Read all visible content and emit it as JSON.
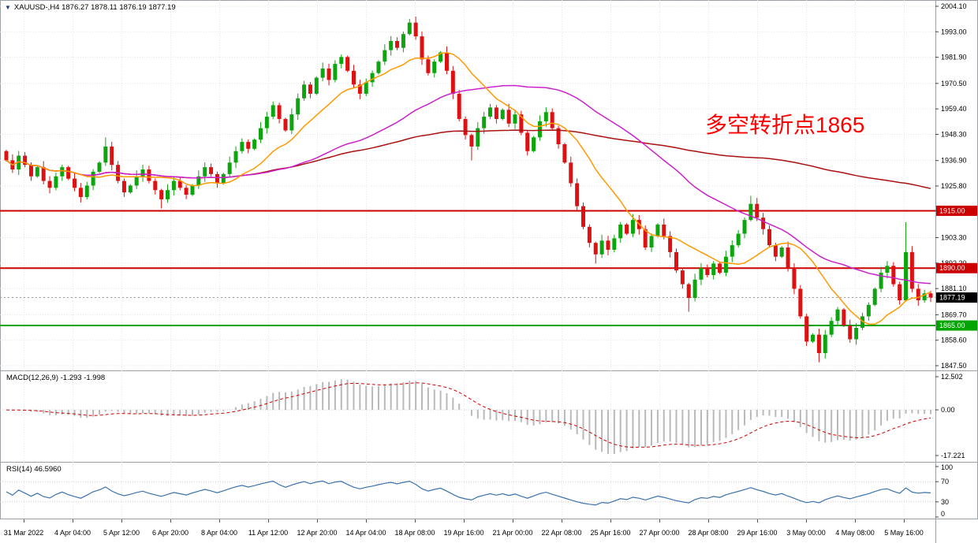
{
  "header": {
    "symbol_icon": "▼",
    "title": "XAUUSD-,H4 1876.27 1878.11 1876.19 1877.19",
    "symbol": "XAUUSD",
    "timeframe": "H4",
    "quote": {
      "open": "1876.27",
      "high": "1878.11",
      "low": "1876.19",
      "close": "1877.19"
    }
  },
  "main_chart": {
    "annotation": "多空转折点1865",
    "annotation_color": "#ff0000",
    "price_max": 2004.1,
    "price_min": 1847.5,
    "y_ticks": [
      "2004.10",
      "1993.00",
      "1981.90",
      "1970.50",
      "1959.40",
      "1948.30",
      "1936.90",
      "1925.80",
      "1915.00",
      "1903.30",
      "1892.20",
      "1881.10",
      "1869.70",
      "1858.60",
      "1847.50"
    ],
    "hlines": [
      {
        "price": 1915.0,
        "label": "1915.00",
        "color": "#cc0000"
      },
      {
        "price": 1890.0,
        "label": "1890.00",
        "color": "#cc0000"
      },
      {
        "price": 1865.0,
        "label": "1865.00",
        "color": "#00a400"
      }
    ],
    "current_price": {
      "value": 1877.19,
      "label": "1877.19",
      "bg": "#000000"
    },
    "colors": {
      "up": "#0da50d",
      "down": "#dd1111",
      "ma_fast": "#ff9900",
      "ma_mid": "#cc22cc",
      "ma_slow": "#aa1111"
    },
    "ma_periods": {
      "fast": 13,
      "mid": 40,
      "slow": 110
    }
  },
  "macd": {
    "label": "MACD(12,26,9) -1.293 -1.998",
    "fast": 12,
    "slow": 26,
    "signal": 9,
    "main_value": "-1.293",
    "signal_value": "-1.998",
    "y_ticks": [
      "12.502",
      "0.00",
      "-17.221"
    ],
    "hist_color": "#b9b9b9",
    "signal_color": "#cc0000"
  },
  "rsi": {
    "label": "RSI(14) 46.5960",
    "period": 14,
    "value": "46.5960",
    "y_ticks": [
      "100",
      "70",
      "30",
      "0"
    ],
    "levels": [
      70,
      30
    ],
    "line_color": "#3a72ae"
  },
  "chart_data": {
    "type": "candlestick",
    "symbol": "XAUUSD",
    "timeframe": "H4",
    "title": "XAUUSD-,H4",
    "ylim": [
      1847.5,
      2004.1
    ],
    "first_open": 1941,
    "closes": [
      1937,
      1933,
      1939,
      1935,
      1930,
      1934,
      1928,
      1925,
      1930,
      1934,
      1929,
      1925,
      1921,
      1926,
      1932,
      1936,
      1943,
      1935,
      1928,
      1923,
      1926,
      1930,
      1933,
      1928,
      1924,
      1920,
      1924,
      1928,
      1925,
      1922,
      1926,
      1930,
      1934,
      1931,
      1927,
      1931,
      1936,
      1941,
      1945,
      1942,
      1946,
      1951,
      1956,
      1961,
      1955,
      1950,
      1957,
      1964,
      1970,
      1966,
      1973,
      1977,
      1972,
      1979,
      1982,
      1976,
      1970,
      1966,
      1971,
      1975,
      1980,
      1985,
      1989,
      1986,
      1992,
      1997,
      1991,
      1981,
      1975,
      1980,
      1984,
      1976,
      1966,
      1955,
      1948,
      1943,
      1951,
      1956,
      1960,
      1955,
      1959,
      1953,
      1957,
      1949,
      1941,
      1947,
      1954,
      1958,
      1951,
      1944,
      1936,
      1927,
      1917,
      1908,
      1901,
      1896,
      1902,
      1898,
      1903,
      1909,
      1905,
      1911,
      1907,
      1899,
      1904,
      1909,
      1904,
      1897,
      1889,
      1883,
      1877,
      1885,
      1890,
      1887,
      1892,
      1888,
      1895,
      1900,
      1905,
      1911,
      1918,
      1912,
      1907,
      1900,
      1895,
      1899,
      1890,
      1881,
      1869,
      1858,
      1861,
      1853,
      1861,
      1867,
      1872,
      1865,
      1859,
      1864,
      1869,
      1874,
      1881,
      1888,
      1891,
      1883,
      1876,
      1897,
      1881,
      1876,
      1879,
      1877.2
    ],
    "wick_high_overrides": {
      "16": 1947,
      "65": 1998.6,
      "120": 1921.5,
      "145": 1910
    },
    "wick_low_overrides": {
      "25": 1916,
      "75": 1937,
      "95": 1892,
      "110": 1871,
      "131": 1849
    },
    "x_ticks": [
      "31 Mar 2022",
      "4 Apr 04:00",
      "5 Apr 12:00",
      "6 Apr 20:00",
      "8 Apr 04:00",
      "11 Apr 12:00",
      "12 Apr 20:00",
      "14 Apr 04:00",
      "18 Apr 08:00",
      "19 Apr 16:00",
      "21 Apr 00:00",
      "22 Apr 08:00",
      "25 Apr 16:00",
      "27 Apr 00:00",
      "28 Apr 08:00",
      "29 Apr 16:00",
      "3 May 00:00",
      "4 May 08:00",
      "5 May 16:00"
    ]
  }
}
